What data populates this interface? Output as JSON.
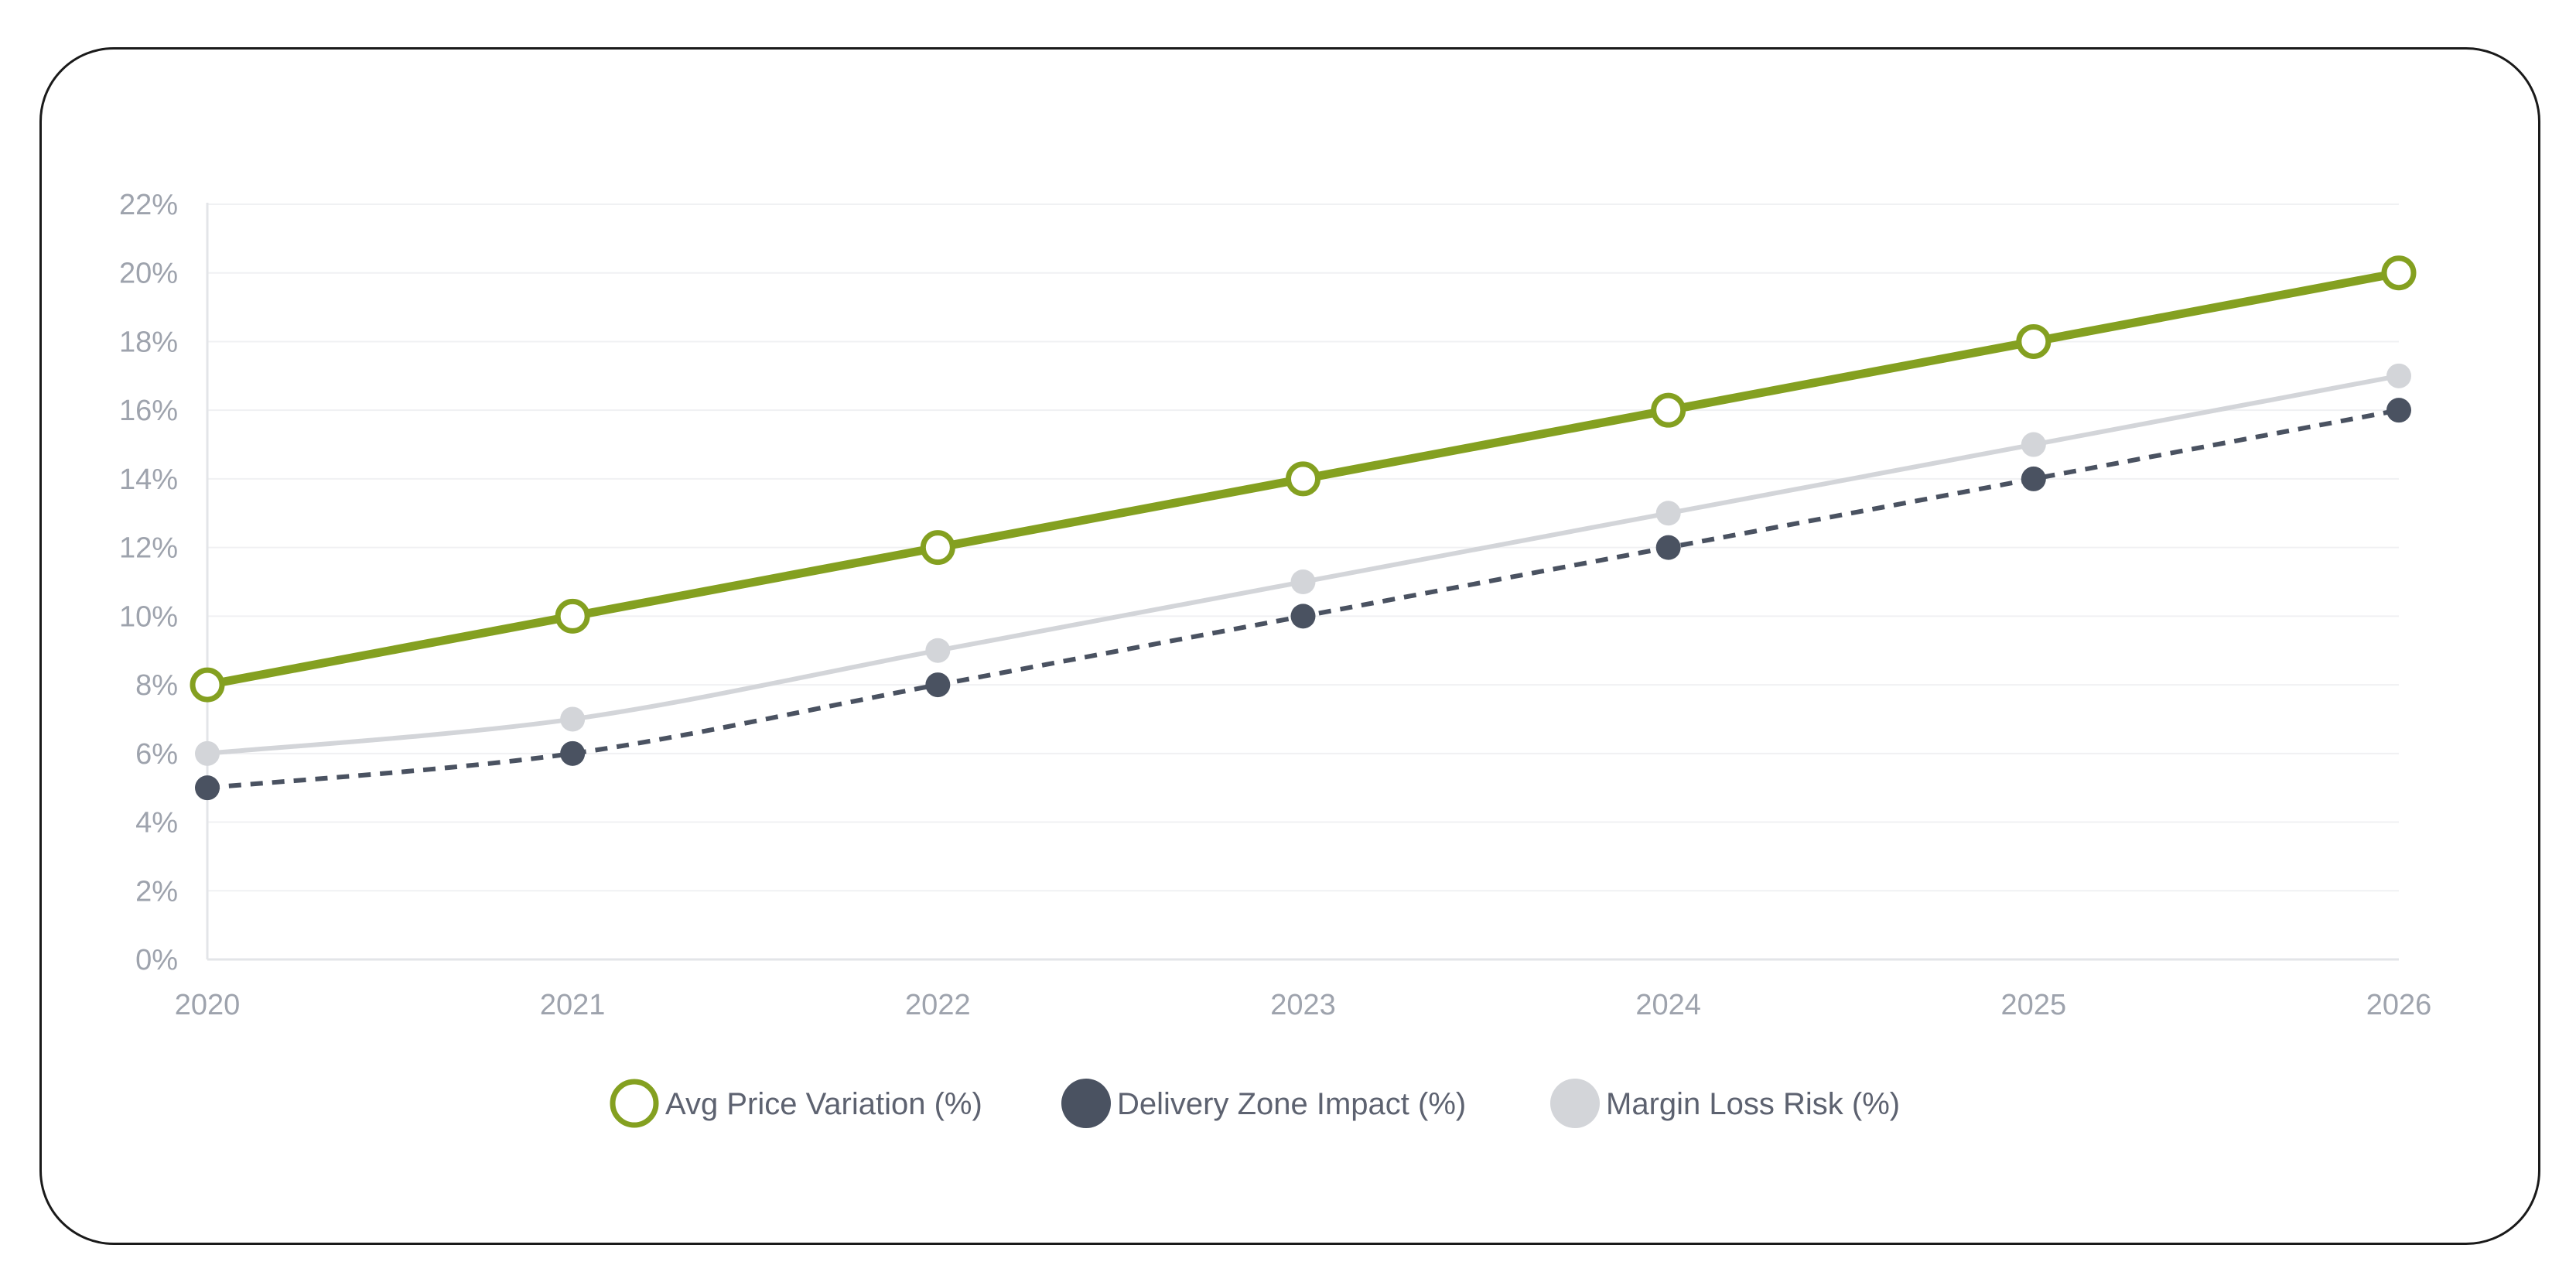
{
  "chart_data": {
    "type": "line",
    "title": "",
    "xlabel": "",
    "ylabel": "",
    "categories": [
      "2020",
      "2021",
      "2022",
      "2023",
      "2024",
      "2025",
      "2026"
    ],
    "ylim": [
      0,
      22
    ],
    "y_ticks": [
      "0%",
      "2%",
      "4%",
      "6%",
      "8%",
      "10%",
      "12%",
      "14%",
      "16%",
      "18%",
      "20%",
      "22%"
    ],
    "grid": true,
    "legend_position": "bottom",
    "series": [
      {
        "name": "Avg Price Variation (%)",
        "values": [
          8,
          10,
          12,
          14,
          16,
          18,
          20
        ],
        "color": "#84a020",
        "line_style": "solid",
        "marker": "hollow-circle"
      },
      {
        "name": "Delivery Zone Impact (%)",
        "values": [
          5,
          6,
          8,
          10,
          12,
          14,
          16
        ],
        "color": "#4a5261",
        "line_style": "dashed",
        "marker": "filled-circle"
      },
      {
        "name": "Margin Loss Risk (%)",
        "values": [
          6,
          7,
          9,
          11,
          13,
          15,
          17
        ],
        "color": "#d3d5d9",
        "line_style": "solid",
        "marker": "filled-circle"
      }
    ]
  }
}
